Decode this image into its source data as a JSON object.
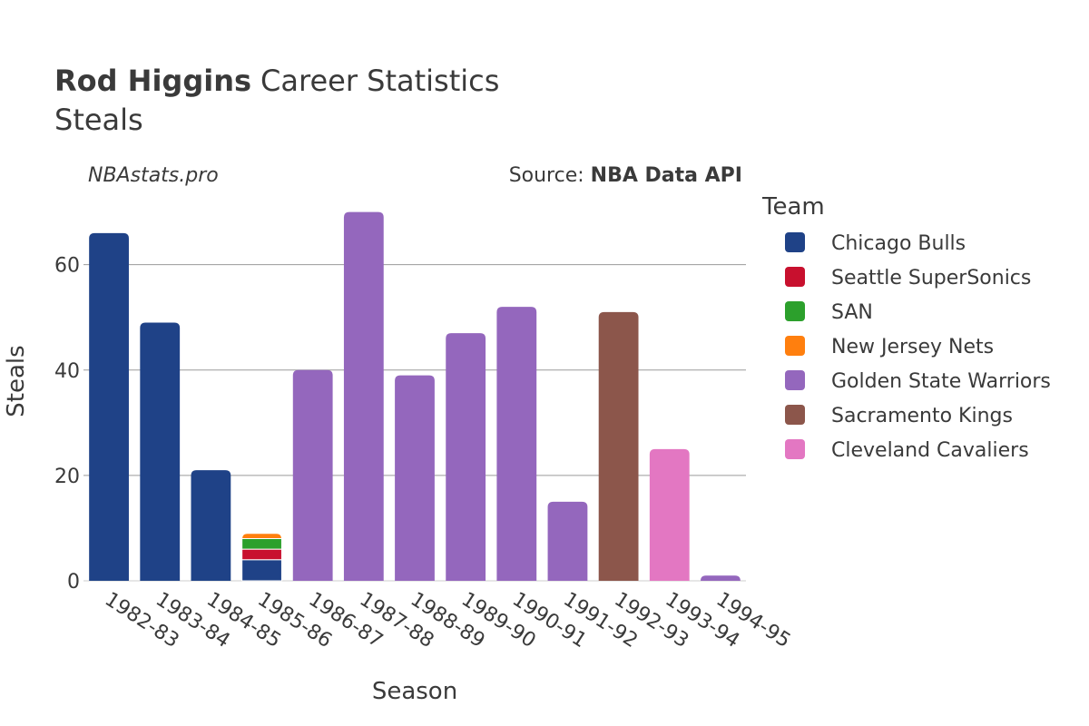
{
  "header": {
    "title_bold": "Rod Higgins",
    "title_rest": "Career Statistics",
    "subtitle": "Steals",
    "site": "NBAstats.pro",
    "source_label": "Source: ",
    "source_value": "NBA Data API"
  },
  "chart_data": {
    "type": "bar",
    "stacked": true,
    "xlabel": "Season",
    "ylabel": "Steals",
    "ylim": [
      0,
      72
    ],
    "yticks": [
      0,
      20,
      40,
      60
    ],
    "grid": true,
    "legend_title": "Team",
    "legend_position": "right",
    "categories": [
      "1982-83",
      "1983-84",
      "1984-85",
      "1985-86",
      "1986-87",
      "1987-88",
      "1988-89",
      "1989-90",
      "1990-91",
      "1991-92",
      "1992-93",
      "1993-94",
      "1994-95"
    ],
    "series": [
      {
        "name": "Chicago Bulls",
        "color": "#1f4287",
        "values": [
          66,
          49,
          21,
          4,
          0,
          0,
          0,
          0,
          0,
          0,
          0,
          0,
          0
        ]
      },
      {
        "name": "Seattle SuperSonics",
        "color": "#c8102e",
        "values": [
          0,
          0,
          0,
          2,
          0,
          0,
          0,
          0,
          0,
          0,
          0,
          0,
          0
        ]
      },
      {
        "name": "SAN",
        "color": "#2ca02c",
        "values": [
          0,
          0,
          0,
          2,
          0,
          0,
          0,
          0,
          0,
          0,
          0,
          0,
          0
        ]
      },
      {
        "name": "New Jersey Nets",
        "color": "#ff7f0e",
        "values": [
          0,
          0,
          0,
          1,
          0,
          0,
          0,
          0,
          0,
          0,
          0,
          0,
          0
        ]
      },
      {
        "name": "Golden State Warriors",
        "color": "#9467bd",
        "values": [
          0,
          0,
          0,
          0,
          40,
          70,
          39,
          47,
          52,
          15,
          0,
          0,
          1
        ]
      },
      {
        "name": "Sacramento Kings",
        "color": "#8c564b",
        "values": [
          0,
          0,
          0,
          0,
          0,
          0,
          0,
          0,
          0,
          0,
          51,
          0,
          0
        ]
      },
      {
        "name": "Cleveland Cavaliers",
        "color": "#e377c2",
        "values": [
          0,
          0,
          0,
          0,
          0,
          0,
          0,
          0,
          0,
          0,
          0,
          25,
          0
        ]
      }
    ]
  }
}
